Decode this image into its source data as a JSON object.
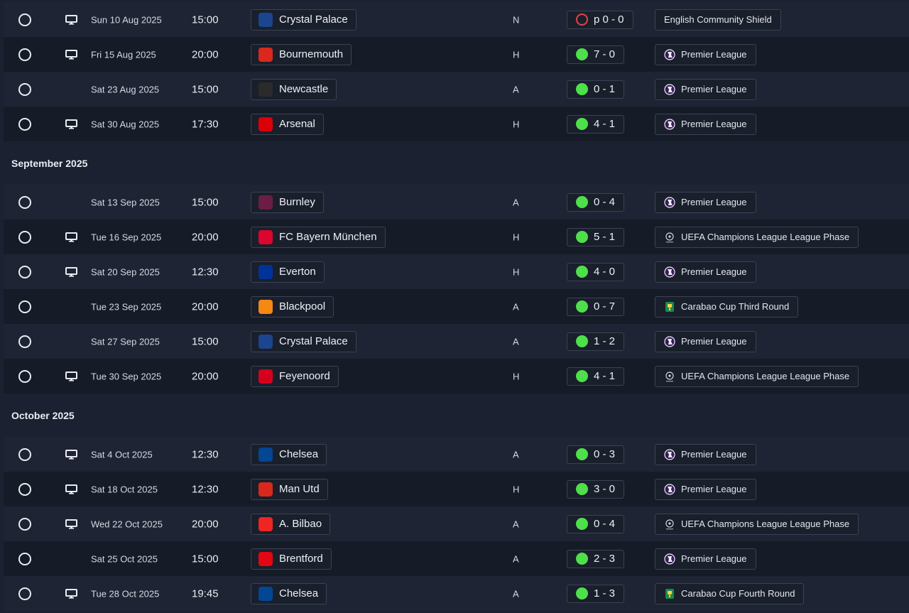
{
  "colors": {
    "win": "#4ee04a",
    "penalty": "#e0424b",
    "row_bg": "#1e2433",
    "row_alt_bg": "#161b28"
  },
  "sections": [
    {
      "month": "",
      "fixtures": [
        {
          "tv": true,
          "date": "Sun 10 Aug 2025",
          "time": "15:00",
          "opponent": "Crystal Palace",
          "crest": "crystal-palace-crest",
          "crest_color": "#1b458f",
          "venue": "N",
          "result": "p 0 - 0",
          "result_type": "penalty",
          "competition": "English Community Shield",
          "comp_icon": ""
        },
        {
          "tv": true,
          "date": "Fri 15 Aug 2025",
          "time": "20:00",
          "opponent": "Bournemouth",
          "crest": "bournemouth-crest",
          "crest_color": "#da291c",
          "venue": "H",
          "result": "7 - 0",
          "result_type": "win",
          "competition": "Premier League",
          "comp_icon": "premier-league-icon"
        },
        {
          "tv": false,
          "date": "Sat 23 Aug 2025",
          "time": "15:00",
          "opponent": "Newcastle",
          "crest": "newcastle-crest",
          "crest_color": "#2b2b2b",
          "venue": "A",
          "result": "0 - 1",
          "result_type": "win",
          "competition": "Premier League",
          "comp_icon": "premier-league-icon"
        },
        {
          "tv": true,
          "date": "Sat 30 Aug 2025",
          "time": "17:30",
          "opponent": "Arsenal",
          "crest": "arsenal-crest",
          "crest_color": "#db0007",
          "venue": "H",
          "result": "4 - 1",
          "result_type": "win",
          "competition": "Premier League",
          "comp_icon": "premier-league-icon"
        }
      ]
    },
    {
      "month": "September 2025",
      "fixtures": [
        {
          "tv": false,
          "date": "Sat 13 Sep 2025",
          "time": "15:00",
          "opponent": "Burnley",
          "crest": "burnley-crest",
          "crest_color": "#6c1d45",
          "venue": "A",
          "result": "0 - 4",
          "result_type": "win",
          "competition": "Premier League",
          "comp_icon": "premier-league-icon"
        },
        {
          "tv": true,
          "date": "Tue 16 Sep 2025",
          "time": "20:00",
          "opponent": "FC Bayern München",
          "crest": "bayern-crest",
          "crest_color": "#dc052d",
          "venue": "H",
          "result": "5 - 1",
          "result_type": "win",
          "competition": "UEFA Champions League League Phase",
          "comp_icon": "champions-league-icon"
        },
        {
          "tv": true,
          "date": "Sat 20 Sep 2025",
          "time": "12:30",
          "opponent": "Everton",
          "crest": "everton-crest",
          "crest_color": "#003399",
          "venue": "H",
          "result": "4 - 0",
          "result_type": "win",
          "competition": "Premier League",
          "comp_icon": "premier-league-icon"
        },
        {
          "tv": false,
          "date": "Tue 23 Sep 2025",
          "time": "20:00",
          "opponent": "Blackpool",
          "crest": "blackpool-crest",
          "crest_color": "#f68712",
          "venue": "A",
          "result": "0 - 7",
          "result_type": "win",
          "competition": "Carabao Cup Third Round",
          "comp_icon": "carabao-cup-icon"
        },
        {
          "tv": false,
          "date": "Sat 27 Sep 2025",
          "time": "15:00",
          "opponent": "Crystal Palace",
          "crest": "crystal-palace-crest",
          "crest_color": "#1b458f",
          "venue": "A",
          "result": "1 - 2",
          "result_type": "win",
          "competition": "Premier League",
          "comp_icon": "premier-league-icon"
        },
        {
          "tv": true,
          "date": "Tue 30 Sep 2025",
          "time": "20:00",
          "opponent": "Feyenoord",
          "crest": "feyenoord-crest",
          "crest_color": "#d6001c",
          "venue": "H",
          "result": "4 - 1",
          "result_type": "win",
          "competition": "UEFA Champions League League Phase",
          "comp_icon": "champions-league-icon"
        }
      ]
    },
    {
      "month": "October 2025",
      "fixtures": [
        {
          "tv": true,
          "date": "Sat 4 Oct 2025",
          "time": "12:30",
          "opponent": "Chelsea",
          "crest": "chelsea-crest",
          "crest_color": "#034694",
          "venue": "A",
          "result": "0 - 3",
          "result_type": "win",
          "competition": "Premier League",
          "comp_icon": "premier-league-icon"
        },
        {
          "tv": true,
          "date": "Sat 18 Oct 2025",
          "time": "12:30",
          "opponent": "Man Utd",
          "crest": "man-utd-crest",
          "crest_color": "#da291c",
          "venue": "H",
          "result": "3 - 0",
          "result_type": "win",
          "competition": "Premier League",
          "comp_icon": "premier-league-icon"
        },
        {
          "tv": true,
          "date": "Wed 22 Oct 2025",
          "time": "20:00",
          "opponent": "A. Bilbao",
          "crest": "athletic-bilbao-crest",
          "crest_color": "#ee2523",
          "venue": "A",
          "result": "0 - 4",
          "result_type": "win",
          "competition": "UEFA Champions League League Phase",
          "comp_icon": "champions-league-icon"
        },
        {
          "tv": false,
          "date": "Sat 25 Oct 2025",
          "time": "15:00",
          "opponent": "Brentford",
          "crest": "brentford-crest",
          "crest_color": "#e30613",
          "venue": "A",
          "result": "2 - 3",
          "result_type": "win",
          "competition": "Premier League",
          "comp_icon": "premier-league-icon"
        },
        {
          "tv": true,
          "date": "Tue 28 Oct 2025",
          "time": "19:45",
          "opponent": "Chelsea",
          "crest": "chelsea-crest",
          "crest_color": "#034694",
          "venue": "A",
          "result": "1 - 3",
          "result_type": "win",
          "competition": "Carabao Cup Fourth Round",
          "comp_icon": "carabao-cup-icon"
        }
      ]
    }
  ]
}
